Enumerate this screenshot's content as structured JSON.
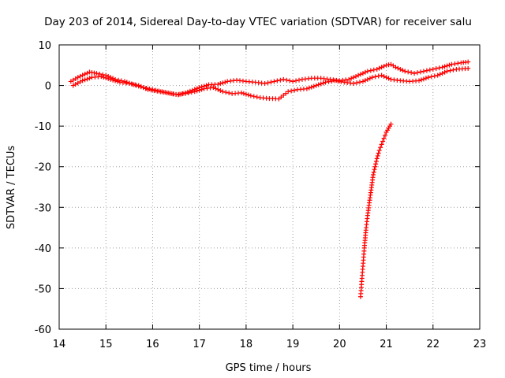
{
  "chart_data": {
    "type": "scatter",
    "title": "Day 203 of 2014, Sidereal Day-to-day VTEC variation (SDTVAR) for receiver salu",
    "xlabel": "GPS time / hours",
    "ylabel": "SDTVAR / TECUs",
    "xlim": [
      14,
      23
    ],
    "ylim": [
      -60,
      10
    ],
    "xticks": [
      14,
      15,
      16,
      17,
      18,
      19,
      20,
      21,
      22,
      23
    ],
    "yticks": [
      -60,
      -50,
      -40,
      -30,
      -20,
      -10,
      0,
      10
    ],
    "grid": true,
    "marker": "plus",
    "color": "#ff0000",
    "series": [
      {
        "name": "main-band-upper",
        "x": [
          14.25,
          14.4,
          14.55,
          14.65,
          14.8,
          15.0,
          15.2,
          15.4,
          15.6,
          15.8,
          16.0,
          16.2,
          16.4,
          16.55,
          16.7,
          16.85,
          17.0,
          17.2,
          17.4,
          17.6,
          17.8,
          18.0,
          18.2,
          18.4,
          18.6,
          18.8,
          19.0,
          19.2,
          19.4,
          19.6,
          19.8,
          20.0,
          20.2,
          20.4,
          20.6,
          20.8,
          21.0,
          21.1,
          21.2,
          21.4,
          21.6,
          21.8,
          22.0,
          22.2,
          22.4,
          22.6,
          22.75
        ],
        "y": [
          1.0,
          2.0,
          2.8,
          3.3,
          3.0,
          2.5,
          1.5,
          1.0,
          0.2,
          -0.5,
          -1.0,
          -1.5,
          -2.0,
          -2.3,
          -1.8,
          -1.2,
          -0.5,
          0.2,
          0.3,
          1.0,
          1.3,
          1.0,
          0.8,
          0.5,
          1.0,
          1.5,
          1.0,
          1.5,
          1.8,
          1.8,
          1.5,
          1.2,
          1.5,
          2.5,
          3.5,
          4.0,
          5.0,
          5.2,
          4.5,
          3.5,
          3.0,
          3.5,
          4.0,
          4.5,
          5.2,
          5.6,
          5.8
        ]
      },
      {
        "name": "main-band-lower",
        "x": [
          14.3,
          14.5,
          14.7,
          14.9,
          15.1,
          15.3,
          15.5,
          15.7,
          15.9,
          16.1,
          16.3,
          16.5,
          16.7,
          16.9,
          17.1,
          17.3,
          17.5,
          17.7,
          17.9,
          18.1,
          18.3,
          18.5,
          18.7,
          18.9,
          19.1,
          19.3,
          19.5,
          19.7,
          19.9,
          20.1,
          20.3,
          20.5,
          20.7,
          20.9,
          21.1,
          21.3,
          21.5,
          21.7,
          21.9,
          22.1,
          22.3,
          22.5,
          22.75
        ],
        "y": [
          0.0,
          1.2,
          2.0,
          2.2,
          1.5,
          0.8,
          0.5,
          0.0,
          -1.0,
          -1.4,
          -1.8,
          -2.2,
          -2.0,
          -1.5,
          -0.8,
          -0.5,
          -1.5,
          -2.0,
          -1.8,
          -2.5,
          -3.0,
          -3.2,
          -3.3,
          -1.5,
          -1.0,
          -0.8,
          0.0,
          0.8,
          1.2,
          0.8,
          0.5,
          1.0,
          2.0,
          2.5,
          1.5,
          1.2,
          1.0,
          1.2,
          2.0,
          2.5,
          3.5,
          4.0,
          4.2
        ]
      },
      {
        "name": "descending-arc",
        "x": [
          20.45,
          20.47,
          20.49,
          20.51,
          20.53,
          20.55,
          20.57,
          20.6,
          20.63,
          20.66,
          20.69,
          20.72,
          20.76,
          20.8,
          20.85,
          20.9,
          20.95,
          21.0,
          21.05,
          21.1
        ],
        "y": [
          -52.0,
          -49.0,
          -46.0,
          -43.0,
          -40.0,
          -37.5,
          -35.0,
          -32.0,
          -29.5,
          -27.0,
          -24.5,
          -22.0,
          -20.0,
          -18.0,
          -16.0,
          -14.5,
          -13.0,
          -11.5,
          -10.5,
          -9.5
        ]
      }
    ]
  }
}
